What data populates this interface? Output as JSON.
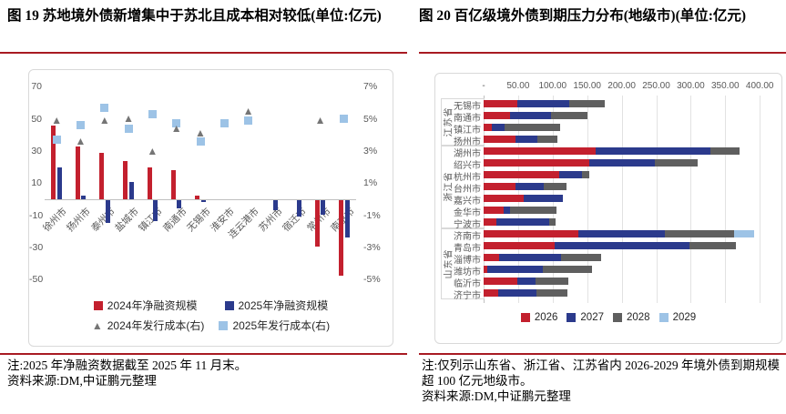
{
  "panels": {
    "left": {
      "title": "图 19 苏地境外债新增集中于苏北且成本相对较低(单位:亿元)",
      "note": "注:2025 年净融资数据截至 2025 年 11 月末。",
      "source": "资料来源:DM,中证鹏元整理"
    },
    "right": {
      "title": "图 20  百亿级境外债到期压力分布(地级市)(单位:亿元)",
      "note": "注:仅列示山东省、浙江省、江苏省内 2026-2029 年境外债到期规模超 100 亿元地级市。",
      "source": "资料来源:DM,中证鹏元整理"
    }
  },
  "colors": {
    "accent_rule": "#A81A22",
    "red": "#C3202E",
    "navy": "#2B3A8C",
    "gray_marker": "#757575",
    "light_blue": "#9DC3E6",
    "gray_bar": "#5F5F5F",
    "axis_text": "#595959",
    "chart_border": "#D9D9D9",
    "zero_line": "#BFBFBF"
  },
  "chart_data": [
    {
      "id": "figure19",
      "type": "bar",
      "title": "苏地境外债新增集中于苏北且成本相对较低",
      "unit": "亿元",
      "categories": [
        "徐州市",
        "扬州市",
        "泰州市",
        "盐城市",
        "镇江市",
        "南通市",
        "无锡市",
        "淮安市",
        "连云港市",
        "苏州市",
        "宿迁市",
        "常州市",
        "南京市"
      ],
      "series": [
        {
          "name": "2024年净融资规模",
          "kind": "bar",
          "axis": "left",
          "color": "#C3202E",
          "values": [
            46,
            33,
            29,
            24,
            20,
            18,
            2,
            0,
            0,
            0,
            0,
            -29,
            -47
          ]
        },
        {
          "name": "2025年净融资规模",
          "kind": "bar",
          "axis": "left",
          "color": "#2B3A8C",
          "values": [
            20,
            2,
            -14,
            11,
            -13,
            -5,
            -1,
            0,
            0,
            -6,
            -10,
            -9,
            -23
          ]
        },
        {
          "name": "2024年发行成本(右)",
          "kind": "scatter-triangle",
          "axis": "right",
          "color": "#757575",
          "values": [
            4.8,
            3.5,
            4.8,
            4.9,
            2.9,
            4.3,
            4.0,
            null,
            5.4,
            null,
            null,
            4.8,
            null
          ]
        },
        {
          "name": "2025年发行成本(右)",
          "kind": "scatter-square",
          "axis": "right",
          "color": "#9DC3E6",
          "values": [
            3.7,
            4.6,
            5.7,
            4.4,
            5.3,
            4.7,
            3.6,
            4.7,
            4.9,
            null,
            null,
            null,
            5.0
          ]
        }
      ],
      "left_axis": {
        "ticks": [
          70,
          50,
          30,
          10,
          -10,
          -30,
          -50
        ],
        "max": 70,
        "min": -50
      },
      "right_axis": {
        "ticks": [
          "7%",
          "5%",
          "3%",
          "1%",
          "-1%",
          "-3%",
          "-5%"
        ],
        "max": 7,
        "min": -5
      },
      "grid": false,
      "legend_position": "bottom"
    },
    {
      "id": "figure20",
      "type": "stacked-bar-horizontal",
      "title": "百亿级境外债到期压力分布(地级市)",
      "unit": "亿元",
      "groups": [
        {
          "province": "江苏省",
          "cities": [
            "无锡市",
            "南通市",
            "镇江市",
            "扬州市"
          ]
        },
        {
          "province": "浙江省",
          "cities": [
            "湖州市",
            "绍兴市",
            "杭州市",
            "台州市",
            "嘉兴市",
            "金华市",
            "宁波市"
          ]
        },
        {
          "province": "山东省",
          "cities": [
            "济南市",
            "青岛市",
            "淄博市",
            "潍坊市",
            "临沂市",
            "济宁市"
          ]
        }
      ],
      "series": [
        {
          "name": "2026",
          "color": "#C3202E",
          "values": [
            49,
            38,
            12,
            46,
            162,
            153,
            109,
            46,
            58,
            29,
            19,
            137,
            103,
            23,
            5,
            49,
            21
          ]
        },
        {
          "name": "2027",
          "color": "#2B3A8C",
          "values": [
            75,
            59,
            18,
            32,
            167,
            95,
            33,
            41,
            57,
            9,
            76,
            125,
            195,
            89,
            81,
            26,
            56
          ]
        },
        {
          "name": "2028",
          "color": "#5F5F5F",
          "values": [
            51,
            53,
            81,
            29,
            42,
            62,
            11,
            33,
            0,
            67,
            9,
            101,
            68,
            58,
            71,
            48,
            45
          ]
        },
        {
          "name": "2029",
          "color": "#9DC3E6",
          "values": [
            0,
            0,
            0,
            0,
            0,
            0,
            0,
            0,
            0,
            0,
            0,
            29,
            0,
            0,
            0,
            0,
            0
          ]
        }
      ],
      "x_axis": {
        "ticks": [
          "-",
          "50.00",
          "100.00",
          "150.00",
          "200.00",
          "250.00",
          "300.00",
          "350.00",
          "400.00"
        ],
        "tick_values": [
          0,
          50,
          100,
          150,
          200,
          250,
          300,
          350,
          400
        ],
        "max": 400
      },
      "grid": true,
      "legend_position": "bottom"
    }
  ]
}
